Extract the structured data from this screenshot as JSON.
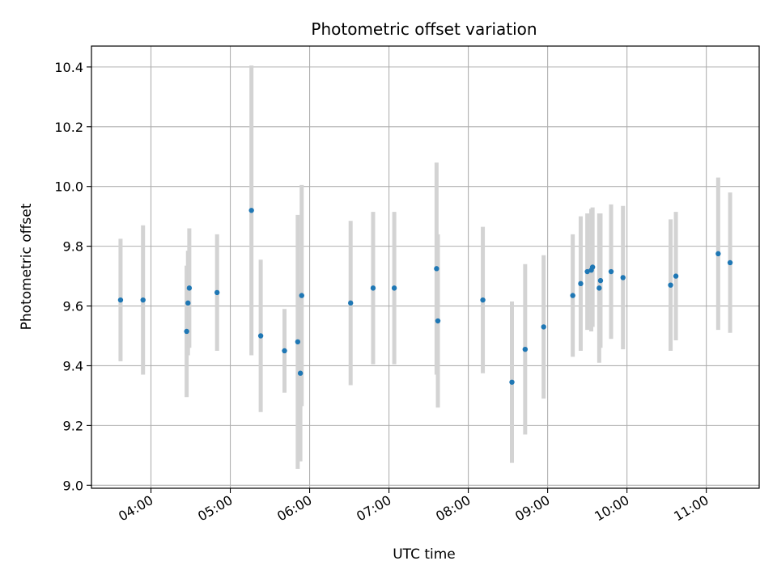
{
  "chart_data": {
    "type": "scatter",
    "title": "Photometric offset variation",
    "xlabel": "UTC time",
    "ylabel": "Photometric offset",
    "grid": true,
    "xlim": [
      "03:15",
      "11:40"
    ],
    "ylim": [
      8.99,
      10.47
    ],
    "x_ticks": [
      "04:00",
      "05:00",
      "06:00",
      "07:00",
      "08:00",
      "09:00",
      "10:00",
      "11:00"
    ],
    "y_ticks": [
      9.0,
      9.2,
      9.4,
      9.6,
      9.8,
      10.0,
      10.2,
      10.4
    ],
    "point_color": "#1f77b4",
    "errorbar_color": "#d3d3d3",
    "points": [
      {
        "x": "03:37",
        "y": 9.62,
        "err": 0.205
      },
      {
        "x": "03:54",
        "y": 9.62,
        "err": 0.25
      },
      {
        "x": "04:27",
        "y": 9.515,
        "err": 0.22
      },
      {
        "x": "04:28",
        "y": 9.61,
        "err": 0.175
      },
      {
        "x": "04:29",
        "y": 9.66,
        "err": 0.2
      },
      {
        "x": "04:50",
        "y": 9.645,
        "err": 0.195
      },
      {
        "x": "05:16",
        "y": 9.92,
        "err": 0.485
      },
      {
        "x": "05:23",
        "y": 9.5,
        "err": 0.255
      },
      {
        "x": "05:41",
        "y": 9.45,
        "err": 0.14
      },
      {
        "x": "05:51",
        "y": 9.48,
        "err": 0.425
      },
      {
        "x": "05:53",
        "y": 9.375,
        "err": 0.295
      },
      {
        "x": "05:54",
        "y": 9.635,
        "err": 0.37
      },
      {
        "x": "06:31",
        "y": 9.61,
        "err": 0.275
      },
      {
        "x": "06:48",
        "y": 9.66,
        "err": 0.255
      },
      {
        "x": "07:04",
        "y": 9.66,
        "err": 0.255
      },
      {
        "x": "07:36",
        "y": 9.725,
        "err": 0.355
      },
      {
        "x": "07:37",
        "y": 9.55,
        "err": 0.29
      },
      {
        "x": "08:11",
        "y": 9.62,
        "err": 0.245
      },
      {
        "x": "08:33",
        "y": 9.345,
        "err": 0.27
      },
      {
        "x": "08:43",
        "y": 9.455,
        "err": 0.285
      },
      {
        "x": "08:57",
        "y": 9.53,
        "err": 0.24
      },
      {
        "x": "09:19",
        "y": 9.635,
        "err": 0.205
      },
      {
        "x": "09:25",
        "y": 9.675,
        "err": 0.225
      },
      {
        "x": "09:30",
        "y": 9.715,
        "err": 0.195
      },
      {
        "x": "09:33",
        "y": 9.72,
        "err": 0.205
      },
      {
        "x": "09:34",
        "y": 9.73,
        "err": 0.2
      },
      {
        "x": "09:39",
        "y": 9.66,
        "err": 0.25
      },
      {
        "x": "09:40",
        "y": 9.685,
        "err": 0.225
      },
      {
        "x": "09:48",
        "y": 9.715,
        "err": 0.225
      },
      {
        "x": "09:57",
        "y": 9.695,
        "err": 0.24
      },
      {
        "x": "10:33",
        "y": 9.67,
        "err": 0.22
      },
      {
        "x": "10:37",
        "y": 9.7,
        "err": 0.215
      },
      {
        "x": "11:09",
        "y": 9.775,
        "err": 0.255
      },
      {
        "x": "11:18",
        "y": 9.745,
        "err": 0.235
      }
    ]
  }
}
